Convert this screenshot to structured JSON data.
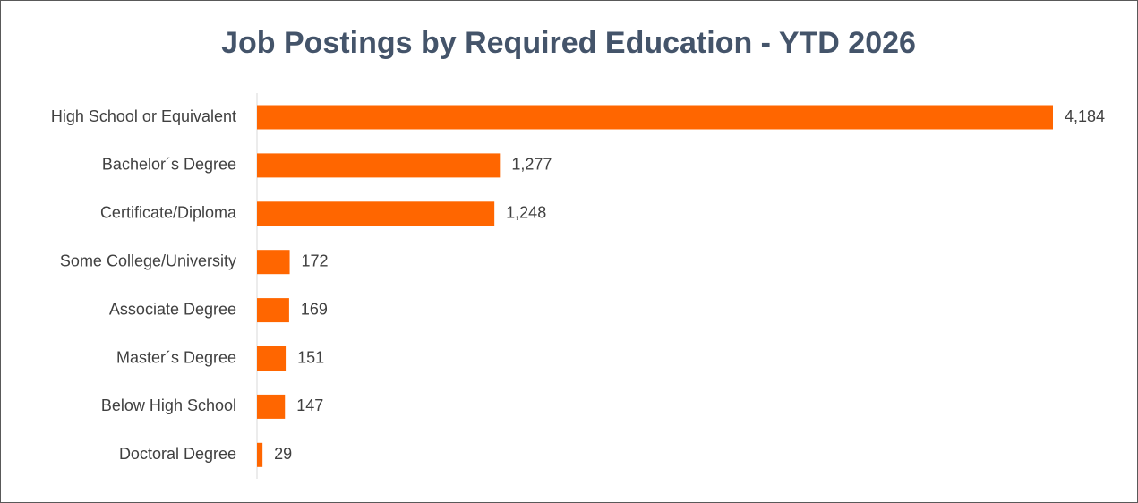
{
  "chart_data": {
    "type": "bar",
    "orientation": "horizontal",
    "title": "Job Postings by Required Education - YTD 2026",
    "categories": [
      "High School or Equivalent",
      "Bachelor´s Degree",
      "Certificate/Diploma",
      "Some College/University",
      "Associate Degree",
      "Master´s Degree",
      "Below High School",
      "Doctoral Degree"
    ],
    "values": [
      4184,
      1277,
      1248,
      172,
      169,
      151,
      147,
      29
    ],
    "value_labels": [
      "4,184",
      "1,277",
      "1,248",
      "172",
      "169",
      "151",
      "147",
      "29"
    ],
    "color": "#ff6600"
  }
}
